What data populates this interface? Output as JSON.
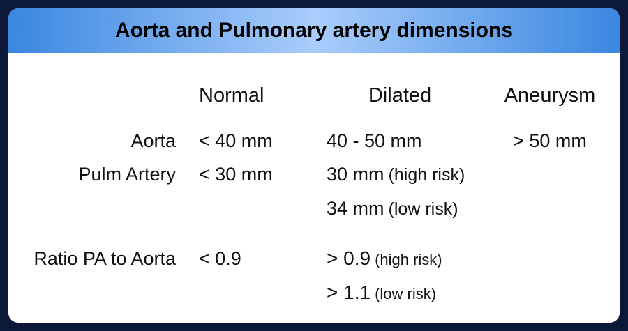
{
  "title": "Aorta and Pulmonary artery dimensions",
  "columns": [
    "Normal",
    "Dilated",
    "Aneurysm"
  ],
  "rows": [
    {
      "label": "Aorta",
      "normal": "< 40 mm",
      "dilated": [
        {
          "text": "40 - 50 mm"
        }
      ],
      "aneurysm": "> 50 mm"
    },
    {
      "label": "Pulm Artery",
      "normal": "< 30 mm",
      "dilated": [
        {
          "text": "30 mm",
          "note": "(high risk)"
        },
        {
          "text": "34 mm",
          "note": "(low risk)"
        }
      ]
    },
    {
      "label": "Ratio PA to Aorta",
      "normal": "< 0.9",
      "dilated": [
        {
          "text": "> 0.9",
          "note": "(high risk)"
        },
        {
          "text": "> 1.1",
          "note": "(low risk)"
        }
      ]
    }
  ]
}
